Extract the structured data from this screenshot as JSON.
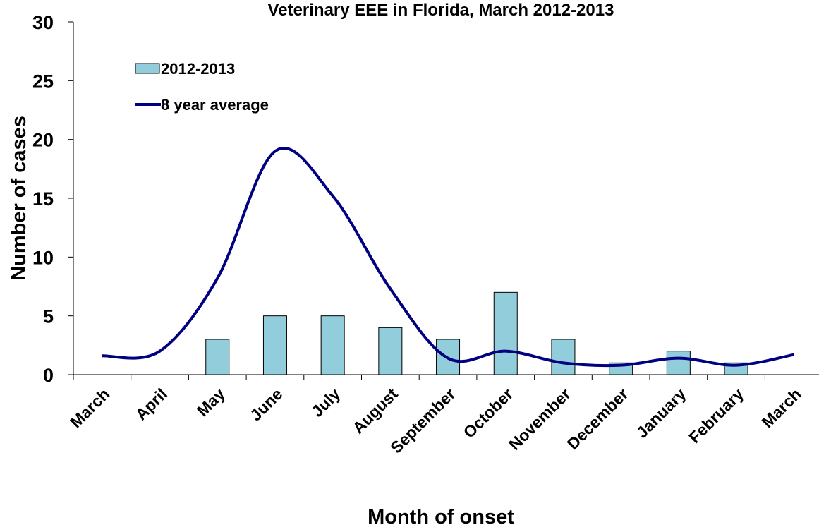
{
  "chart_data": {
    "type": "bar-line",
    "title": "Veterinary EEE in Florida, March 2012-2013",
    "x_label": "Month of onset",
    "y_label": "Number of cases",
    "categories": [
      "March",
      "April",
      "May",
      "June",
      "July",
      "August",
      "September",
      "October",
      "November",
      "December",
      "January",
      "February",
      "March"
    ],
    "series": [
      {
        "name": "2012-2013",
        "type": "bar",
        "color": "#92cddc",
        "values": [
          0,
          0,
          3,
          5,
          5,
          4,
          3,
          7,
          3,
          1,
          2,
          1,
          0
        ]
      },
      {
        "name": "8 year average",
        "type": "line",
        "color": "#000080",
        "values": [
          1.6,
          2.0,
          8.2,
          19.0,
          15.2,
          7.3,
          1.4,
          2.0,
          1.0,
          0.8,
          1.4,
          0.8,
          1.7
        ]
      }
    ],
    "ylim": [
      0,
      30
    ],
    "yticks": [
      0,
      5,
      10,
      15,
      20,
      25,
      30
    ],
    "grid": false,
    "legend": "upper left"
  }
}
